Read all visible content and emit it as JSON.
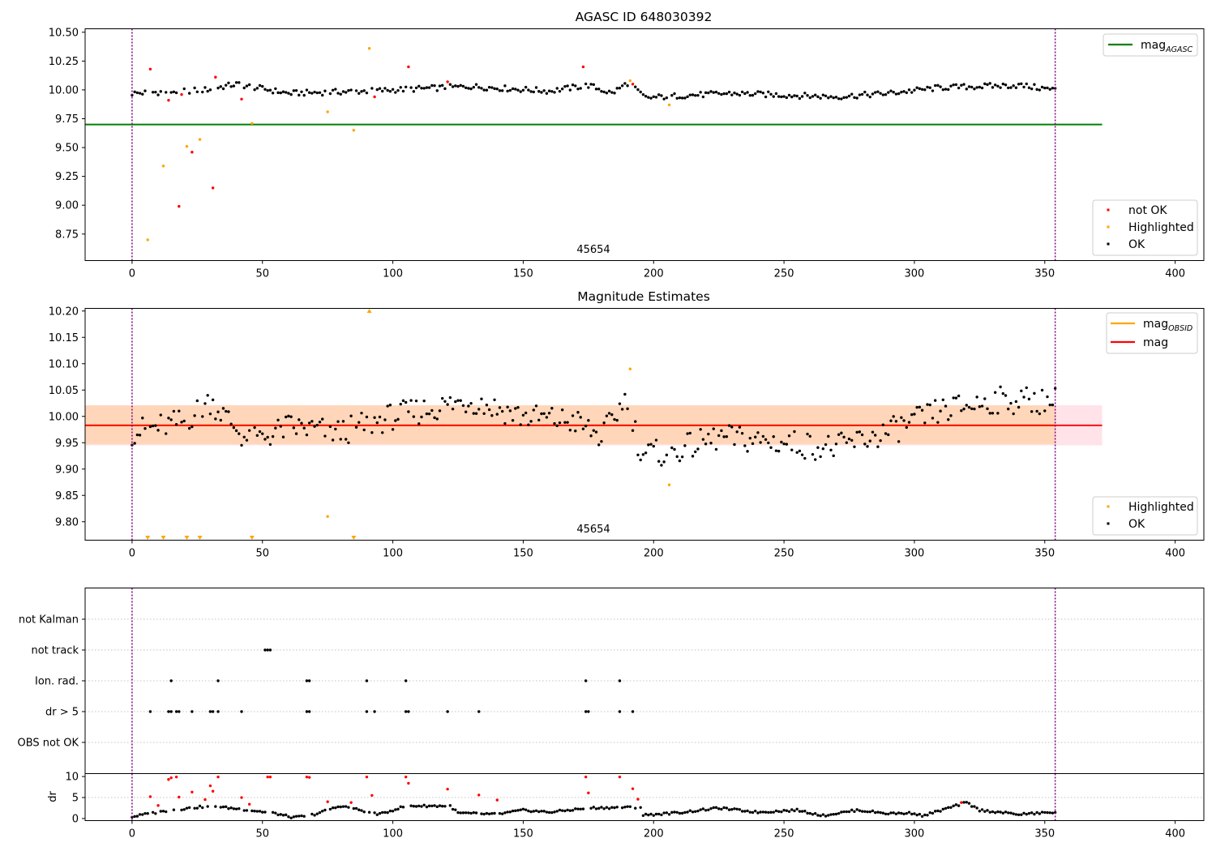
{
  "colors": {
    "ok": "#000000",
    "not_ok": "#ff0000",
    "highlighted": "#ffa500",
    "mag_agasc": "#008000",
    "mag_obsid": "#ffa500",
    "mag": "#ff0000",
    "vline": "#800080",
    "band_mag": "#ffc0cb",
    "band_obsid": "#ffa500"
  },
  "chart_data": [
    {
      "type": "scatter",
      "title": "AGASC ID 648030392",
      "annotation": "45654",
      "xlim": [
        -18,
        411
      ],
      "ylim": [
        8.52,
        10.53
      ],
      "xticks": [
        "0",
        "50",
        "100",
        "150",
        "200",
        "250",
        "300",
        "350",
        "400"
      ],
      "yticks": [
        "8.75",
        "9.00",
        "9.25",
        "9.50",
        "9.75",
        "10.00",
        "10.25",
        "10.50"
      ],
      "legend_lines": [
        {
          "label": "mag",
          "subscript": "AGASC",
          "color": "#008000"
        }
      ],
      "legend_points": [
        {
          "label": "not OK",
          "color": "#ff0000"
        },
        {
          "label": "Highlighted",
          "color": "#ffa500"
        },
        {
          "label": "OK",
          "color": "#000000"
        }
      ],
      "hline": {
        "name": "mag_AGASC",
        "y": 9.7,
        "x_range": [
          -18,
          372
        ]
      },
      "vlines": [
        0,
        354
      ],
      "not_ok_points": [
        [
          7,
          10.18
        ],
        [
          14,
          9.91
        ],
        [
          18,
          8.99
        ],
        [
          19,
          9.96
        ],
        [
          23,
          9.46
        ],
        [
          31,
          9.15
        ],
        [
          32,
          10.11
        ],
        [
          42,
          9.92
        ],
        [
          93,
          9.94
        ],
        [
          106,
          10.2
        ],
        [
          121,
          10.07
        ],
        [
          173,
          10.2
        ],
        [
          192,
          10.05
        ]
      ],
      "highlighted_points": [
        [
          6,
          8.7
        ],
        [
          12,
          9.34
        ],
        [
          21,
          9.51
        ],
        [
          26,
          9.57
        ],
        [
          46,
          9.71
        ],
        [
          75,
          9.81
        ],
        [
          85,
          9.65
        ],
        [
          91,
          10.36
        ],
        [
          191,
          10.08
        ],
        [
          206,
          9.87
        ]
      ],
      "ok_mean": 9.985,
      "ok_segments": [
        [
          0,
          9.97
        ],
        [
          28,
          10.0
        ],
        [
          40,
          10.05
        ],
        [
          60,
          9.97
        ],
        [
          90,
          9.99
        ],
        [
          130,
          10.03
        ],
        [
          160,
          9.99
        ],
        [
          175,
          10.04
        ],
        [
          184,
          9.97
        ],
        [
          190,
          10.06
        ],
        [
          197,
          9.93
        ],
        [
          210,
          9.95
        ],
        [
          230,
          9.97
        ],
        [
          270,
          9.94
        ],
        [
          290,
          9.97
        ],
        [
          310,
          10.02
        ],
        [
          340,
          10.04
        ],
        [
          354,
          10.0
        ]
      ]
    },
    {
      "type": "scatter",
      "title": "Magnitude Estimates",
      "annotation": "45654",
      "xlim": [
        -18,
        411
      ],
      "ylim": [
        9.765,
        10.205
      ],
      "xticks": [
        "0",
        "50",
        "100",
        "150",
        "200",
        "250",
        "300",
        "350",
        "400"
      ],
      "yticks": [
        "9.80",
        "9.85",
        "9.90",
        "9.95",
        "10.00",
        "10.05",
        "10.10",
        "10.15",
        "10.20"
      ],
      "legend_lines": [
        {
          "label": "mag",
          "subscript": "OBSID",
          "color": "#ffa500"
        },
        {
          "label": "mag",
          "subscript": "",
          "color": "#ff0000"
        }
      ],
      "legend_points": [
        {
          "label": "Highlighted",
          "color": "#ffa500"
        },
        {
          "label": "OK",
          "color": "#000000"
        }
      ],
      "mag_line": {
        "name": "mag",
        "y": 9.983,
        "x_range": [
          -18,
          372
        ]
      },
      "mag_band": [
        9.945,
        10.021
      ],
      "obsid_band": [
        9.947,
        10.021
      ],
      "obsid_band_x": [
        -18,
        354
      ],
      "vlines": [
        0,
        354
      ],
      "highlighted_points": [
        [
          75,
          9.81
        ],
        [
          191,
          10.09
        ],
        [
          206,
          9.87
        ]
      ],
      "highlighted_up": [
        [
          91,
          10.2
        ]
      ],
      "highlighted_down": [
        [
          6,
          9.768
        ],
        [
          12,
          9.768
        ],
        [
          21,
          9.768
        ],
        [
          26,
          9.768
        ],
        [
          46,
          9.768
        ],
        [
          85,
          9.768
        ]
      ],
      "ok_segments": [
        [
          0,
          9.97
        ],
        [
          20,
          9.99
        ],
        [
          30,
          10.03
        ],
        [
          45,
          9.95
        ],
        [
          60,
          9.98
        ],
        [
          80,
          9.97
        ],
        [
          100,
          10.0
        ],
        [
          130,
          10.03
        ],
        [
          150,
          10.0
        ],
        [
          170,
          9.99
        ],
        [
          180,
          9.96
        ],
        [
          190,
          10.04
        ],
        [
          195,
          9.93
        ],
        [
          205,
          9.93
        ],
        [
          225,
          9.96
        ],
        [
          250,
          9.95
        ],
        [
          270,
          9.94
        ],
        [
          290,
          9.97
        ],
        [
          310,
          10.01
        ],
        [
          330,
          10.03
        ],
        [
          354,
          10.03
        ]
      ]
    },
    {
      "type": "scatter",
      "annotation": "",
      "xlim": [
        -18,
        411
      ],
      "ylabels": [
        "not Kalman",
        "not track",
        "Ion. rad.",
        "dr > 5",
        "OBS not OK"
      ],
      "vlines": [
        0,
        354
      ],
      "flags": {
        "not Kalman": [],
        "not track": [
          51,
          52,
          53
        ],
        "Ion. rad.": [
          15,
          33,
          67,
          68,
          90,
          105,
          174,
          187
        ],
        "dr > 5": [
          7,
          14,
          15,
          17,
          18,
          23,
          30,
          31,
          33,
          42,
          67,
          68,
          90,
          93,
          105,
          106,
          121,
          133,
          174,
          175,
          187,
          192
        ],
        "OBS not OK": []
      }
    },
    {
      "type": "scatter",
      "ylabel": "dr",
      "xlim": [
        -18,
        411
      ],
      "ylim": [
        -0.5,
        10.7
      ],
      "xticks": [
        "0",
        "50",
        "100",
        "150",
        "200",
        "250",
        "300",
        "350",
        "400"
      ],
      "yticks": [
        "0",
        "5",
        "10"
      ],
      "threshold": 5,
      "vlines": [
        0,
        354
      ],
      "red_points": [
        [
          7,
          5.2
        ],
        [
          10,
          3.1
        ],
        [
          14,
          9.3
        ],
        [
          15,
          9.7
        ],
        [
          17,
          9.9
        ],
        [
          18,
          5.1
        ],
        [
          23,
          6.3
        ],
        [
          28,
          4.5
        ],
        [
          30,
          7.8
        ],
        [
          31,
          6.5
        ],
        [
          33,
          9.9
        ],
        [
          42,
          5.0
        ],
        [
          45,
          3.4
        ],
        [
          52,
          9.9
        ],
        [
          53,
          9.9
        ],
        [
          67,
          9.9
        ],
        [
          68,
          9.8
        ],
        [
          75,
          4.0
        ],
        [
          84,
          3.8
        ],
        [
          90,
          9.9
        ],
        [
          92,
          5.5
        ],
        [
          105,
          9.9
        ],
        [
          106,
          8.4
        ],
        [
          121,
          7.0
        ],
        [
          133,
          5.6
        ],
        [
          140,
          4.4
        ],
        [
          174,
          9.9
        ],
        [
          175,
          6.1
        ],
        [
          187,
          9.9
        ],
        [
          192,
          7.1
        ],
        [
          194,
          4.6
        ],
        [
          318,
          3.8
        ]
      ],
      "dr_segments": [
        [
          0,
          0.4
        ],
        [
          5,
          1.0
        ],
        [
          15,
          2.0
        ],
        [
          30,
          3.0
        ],
        [
          45,
          2.0
        ],
        [
          55,
          1.2
        ],
        [
          62,
          0.2
        ],
        [
          70,
          1.0
        ],
        [
          80,
          3.0
        ],
        [
          95,
          1.0
        ],
        [
          105,
          3.0
        ],
        [
          122,
          3.0
        ],
        [
          125,
          1.3
        ],
        [
          140,
          1.0
        ],
        [
          150,
          2.0
        ],
        [
          160,
          1.5
        ],
        [
          175,
          2.5
        ],
        [
          195,
          2.7
        ],
        [
          196,
          0.8
        ],
        [
          210,
          1.4
        ],
        [
          225,
          2.5
        ],
        [
          240,
          1.5
        ],
        [
          255,
          2.0
        ],
        [
          265,
          0.7
        ],
        [
          278,
          2.0
        ],
        [
          290,
          1.2
        ],
        [
          300,
          1.3
        ],
        [
          303,
          0.6
        ],
        [
          320,
          3.8
        ],
        [
          325,
          2.0
        ],
        [
          340,
          1.0
        ],
        [
          354,
          1.5
        ]
      ]
    }
  ]
}
